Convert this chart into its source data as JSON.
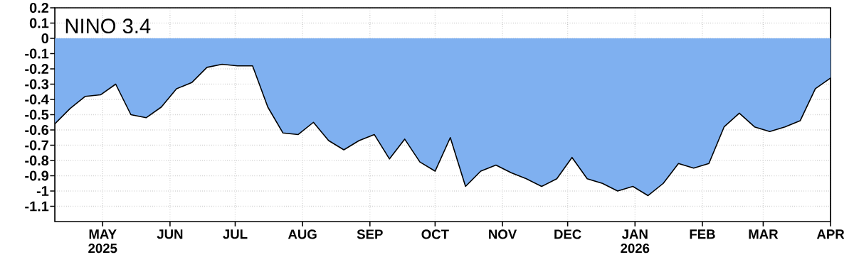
{
  "chart_data": {
    "type": "area",
    "title": "NINO 3.4",
    "x": [
      "2025-04-09",
      "2025-04-16",
      "2025-04-23",
      "2025-04-30",
      "2025-05-07",
      "2025-05-14",
      "2025-05-21",
      "2025-05-28",
      "2025-06-04",
      "2025-06-11",
      "2025-06-18",
      "2025-06-25",
      "2025-07-02",
      "2025-07-09",
      "2025-07-16",
      "2025-07-23",
      "2025-07-30",
      "2025-08-06",
      "2025-08-13",
      "2025-08-20",
      "2025-08-27",
      "2025-09-03",
      "2025-09-10",
      "2025-09-17",
      "2025-09-24",
      "2025-10-01",
      "2025-10-08",
      "2025-10-15",
      "2025-10-22",
      "2025-10-29",
      "2025-11-05",
      "2025-11-12",
      "2025-11-19",
      "2025-11-26",
      "2025-12-03",
      "2025-12-10",
      "2025-12-17",
      "2025-12-24",
      "2025-12-31",
      "2026-01-07",
      "2026-01-14",
      "2026-01-21",
      "2026-01-28",
      "2026-02-04",
      "2026-02-11",
      "2026-02-18",
      "2026-02-25",
      "2026-03-04",
      "2026-03-11",
      "2026-03-18",
      "2026-03-25",
      "2026-04-01"
    ],
    "series": [
      {
        "color": "#7fb0f0",
        "values": [
          -0.56,
          -0.46,
          -0.38,
          -0.37,
          -0.3,
          -0.5,
          -0.52,
          -0.45,
          -0.33,
          -0.29,
          -0.19,
          -0.17,
          -0.18,
          -0.18,
          -0.45,
          -0.62,
          -0.63,
          -0.55,
          -0.67,
          -0.73,
          -0.67,
          -0.63,
          -0.79,
          -0.66,
          -0.81,
          -0.87,
          -0.65,
          -0.97,
          -0.87,
          -0.83,
          -0.88,
          -0.92,
          -0.97,
          -0.92,
          -0.78,
          -0.92,
          -0.95,
          -1.0,
          -0.97,
          -1.03,
          -0.95,
          -0.82,
          -0.85,
          -0.82,
          -0.58,
          -0.49,
          -0.58,
          -0.61,
          -0.58,
          -0.54,
          -0.33,
          -0.26
        ]
      }
    ],
    "xlim": [
      "2025-04-09",
      "2026-04-01"
    ],
    "ylim": [
      -1.2,
      0.2
    ],
    "xticks": [
      {
        "value": "2025-05-01",
        "label": "MAY 2025"
      },
      {
        "value": "2025-06-01",
        "label": "JUN"
      },
      {
        "value": "2025-07-01",
        "label": "JUL"
      },
      {
        "value": "2025-08-01",
        "label": "AUG"
      },
      {
        "value": "2025-09-01",
        "label": "SEP"
      },
      {
        "value": "2025-10-01",
        "label": "OCT"
      },
      {
        "value": "2025-11-01",
        "label": "NOV"
      },
      {
        "value": "2025-12-01",
        "label": "DEC"
      },
      {
        "value": "2026-01-01",
        "label": "JAN 2026"
      },
      {
        "value": "2026-02-01",
        "label": "FEB"
      },
      {
        "value": "2026-03-01",
        "label": "MAR"
      },
      {
        "value": "2026-04-01",
        "label": "APR"
      }
    ],
    "yticks": [
      0.2,
      0.1,
      0,
      -0.1,
      -0.2,
      -0.3,
      -0.4,
      -0.5,
      -0.6,
      -0.7,
      -0.8,
      -0.9,
      -1,
      -1.1
    ],
    "grid": true
  }
}
